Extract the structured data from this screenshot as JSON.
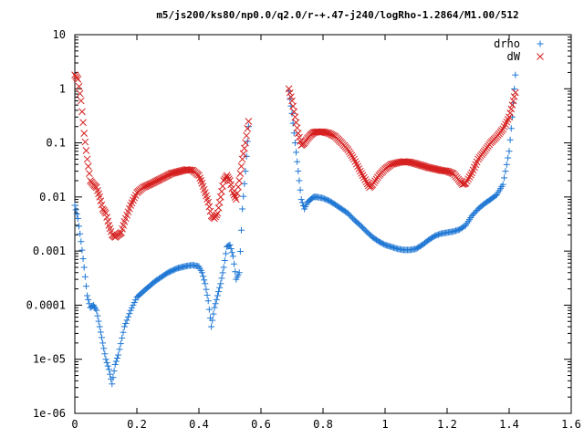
{
  "chart_data": {
    "type": "scatter",
    "title": "m5/js200/ks80/np0.0/q2.0/r-+.47-j240/logRho-1.2864/M1.00/512",
    "xlabel": "",
    "ylabel": "",
    "xlim": [
      0,
      1.6
    ],
    "ylim": [
      1e-06,
      10
    ],
    "y_scale": "log",
    "grid": false,
    "legend_position": "top-right",
    "x_ticks": [
      "0",
      "0.2",
      "0.4",
      "0.6",
      "0.8",
      "1",
      "1.2",
      "1.4",
      "1.6"
    ],
    "y_ticks": [
      "1e-06",
      "1e-05",
      "0.0001",
      "0.001",
      "0.01",
      "0.1",
      "1",
      "10"
    ],
    "series": [
      {
        "name": "drho",
        "marker": "+",
        "color": "#1f77d4",
        "segments": [
          {
            "x": [
              0.0,
              0.01,
              0.02,
              0.03,
              0.04,
              0.05,
              0.06,
              0.07,
              0.08,
              0.09,
              0.1,
              0.11,
              0.12,
              0.13,
              0.14,
              0.16,
              0.18,
              0.2,
              0.23,
              0.26,
              0.3,
              0.33,
              0.36,
              0.38,
              0.4,
              0.41,
              0.42,
              0.43,
              0.44,
              0.45,
              0.46,
              0.47,
              0.48,
              0.49,
              0.5,
              0.51,
              0.52,
              0.53,
              0.54,
              0.55,
              0.56
            ],
            "y": [
              0.007,
              0.004,
              0.0015,
              0.0005,
              0.00015,
              9e-05,
              0.0001,
              8e-05,
              4e-05,
              2e-05,
              1e-05,
              6.5e-06,
              3.5e-06,
              8e-06,
              1.2e-05,
              4e-05,
              8e-05,
              0.00014,
              0.0002,
              0.00028,
              0.0004,
              0.00048,
              0.00053,
              0.00055,
              0.00052,
              0.0004,
              0.00025,
              0.00012,
              4e-05,
              9e-05,
              0.00015,
              0.00025,
              0.0005,
              0.0012,
              0.0013,
              0.0008,
              0.0003,
              0.0004,
              0.006,
              0.03,
              0.2
            ]
          },
          {
            "x": [
              0.69,
              0.7,
              0.71,
              0.72,
              0.73,
              0.74,
              0.75,
              0.76,
              0.77,
              0.78,
              0.8,
              0.82,
              0.84,
              0.86,
              0.88,
              0.9,
              0.92,
              0.94,
              0.96,
              0.98,
              1.0,
              1.02,
              1.04,
              1.06,
              1.08,
              1.1,
              1.12,
              1.14,
              1.16,
              1.18,
              1.2,
              1.22,
              1.24,
              1.26,
              1.28,
              1.3,
              1.32,
              1.34,
              1.36,
              1.38,
              1.4,
              1.41,
              1.42
            ],
            "y": [
              0.9,
              0.35,
              0.1,
              0.03,
              0.009,
              0.006,
              0.008,
              0.009,
              0.01,
              0.01,
              0.0095,
              0.0085,
              0.0072,
              0.006,
              0.005,
              0.0038,
              0.003,
              0.0023,
              0.0018,
              0.0015,
              0.0013,
              0.0012,
              0.0011,
              0.00105,
              0.00105,
              0.0011,
              0.0013,
              0.0016,
              0.0019,
              0.0021,
              0.0022,
              0.0023,
              0.0025,
              0.003,
              0.0045,
              0.006,
              0.0075,
              0.009,
              0.011,
              0.017,
              0.07,
              0.3,
              1.8
            ]
          }
        ]
      },
      {
        "name": "dW",
        "marker": "x",
        "color": "#d62020",
        "segments": [
          {
            "x": [
              0.0,
              0.01,
              0.02,
              0.03,
              0.04,
              0.05,
              0.06,
              0.07,
              0.08,
              0.09,
              0.1,
              0.11,
              0.12,
              0.13,
              0.14,
              0.15,
              0.16,
              0.18,
              0.2,
              0.22,
              0.25,
              0.28,
              0.31,
              0.34,
              0.36,
              0.38,
              0.4,
              0.41,
              0.42,
              0.43,
              0.44,
              0.45,
              0.46,
              0.47,
              0.48,
              0.49,
              0.5,
              0.51,
              0.52,
              0.53,
              0.54,
              0.55,
              0.56
            ],
            "y": [
              1.8,
              1.5,
              0.6,
              0.15,
              0.05,
              0.02,
              0.017,
              0.015,
              0.01,
              0.006,
              0.005,
              0.003,
              0.002,
              0.0018,
              0.002,
              0.0022,
              0.0035,
              0.007,
              0.012,
              0.015,
              0.018,
              0.022,
              0.027,
              0.03,
              0.032,
              0.031,
              0.025,
              0.018,
              0.012,
              0.008,
              0.0045,
              0.004,
              0.005,
              0.01,
              0.02,
              0.025,
              0.02,
              0.012,
              0.009,
              0.02,
              0.05,
              0.1,
              0.25
            ]
          },
          {
            "x": [
              0.69,
              0.7,
              0.71,
              0.72,
              0.73,
              0.74,
              0.75,
              0.76,
              0.77,
              0.78,
              0.8,
              0.82,
              0.84,
              0.86,
              0.88,
              0.9,
              0.92,
              0.94,
              0.95,
              0.96,
              0.98,
              1.0,
              1.02,
              1.04,
              1.06,
              1.08,
              1.1,
              1.12,
              1.14,
              1.16,
              1.18,
              1.2,
              1.22,
              1.24,
              1.25,
              1.26,
              1.28,
              1.3,
              1.32,
              1.34,
              1.36,
              1.38,
              1.4,
              1.41,
              1.42
            ],
            "y": [
              1.0,
              0.6,
              0.3,
              0.15,
              0.09,
              0.1,
              0.12,
              0.14,
              0.155,
              0.16,
              0.16,
              0.15,
              0.13,
              0.1,
              0.075,
              0.05,
              0.03,
              0.019,
              0.015,
              0.017,
              0.025,
              0.033,
              0.04,
              0.043,
              0.045,
              0.044,
              0.041,
              0.038,
              0.035,
              0.033,
              0.031,
              0.03,
              0.027,
              0.02,
              0.017,
              0.018,
              0.028,
              0.05,
              0.07,
              0.1,
              0.13,
              0.18,
              0.3,
              0.5,
              0.85
            ]
          }
        ]
      }
    ]
  }
}
